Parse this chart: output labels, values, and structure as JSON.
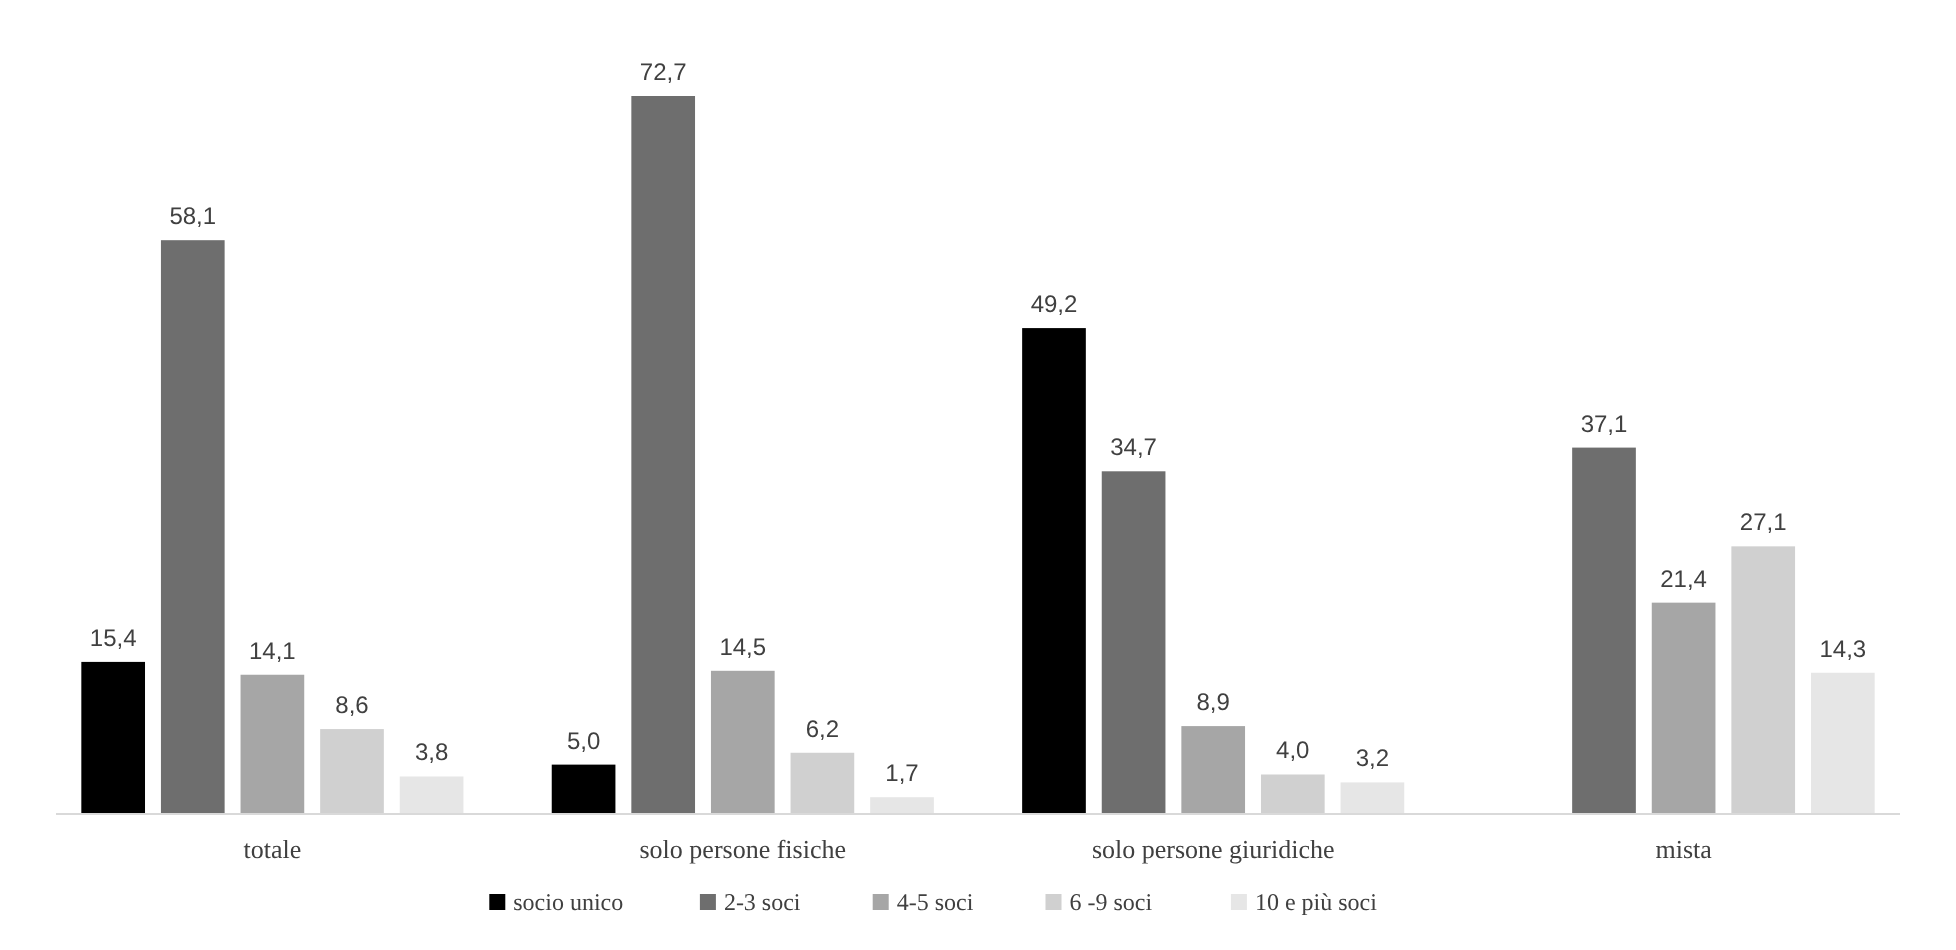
{
  "chart_data": {
    "type": "bar",
    "categories": [
      "totale",
      "solo persone fisiche",
      "solo persone giuridiche",
      "mista"
    ],
    "series": [
      {
        "name": "socio unico",
        "color": "#000000",
        "values": [
          15.4,
          5.0,
          49.2,
          null
        ],
        "value_labels": [
          "15,4",
          "5,0",
          "49,2",
          null
        ]
      },
      {
        "name": "2-3 soci",
        "color": "#6e6e6e",
        "values": [
          58.1,
          72.7,
          34.7,
          37.1
        ],
        "value_labels": [
          "58,1",
          "72,7",
          "34,7",
          "37,1"
        ]
      },
      {
        "name": "4-5 soci",
        "color": "#a6a6a6",
        "values": [
          14.1,
          14.5,
          8.9,
          21.4
        ],
        "value_labels": [
          "14,1",
          "14,5",
          "8,9",
          "21,4"
        ]
      },
      {
        "name": "6 -9 soci",
        "color": "#d0d0d0",
        "values": [
          8.6,
          6.2,
          4.0,
          27.1
        ],
        "value_labels": [
          "8,6",
          "6,2",
          "4,0",
          "27,1"
        ]
      },
      {
        "name": "10 e più soci",
        "color": "#e6e6e6",
        "values": [
          3.8,
          1.7,
          3.2,
          14.3
        ],
        "value_labels": [
          "3,8",
          "1,7",
          "3,2",
          "14,3"
        ]
      }
    ],
    "legend": "bottom"
  }
}
